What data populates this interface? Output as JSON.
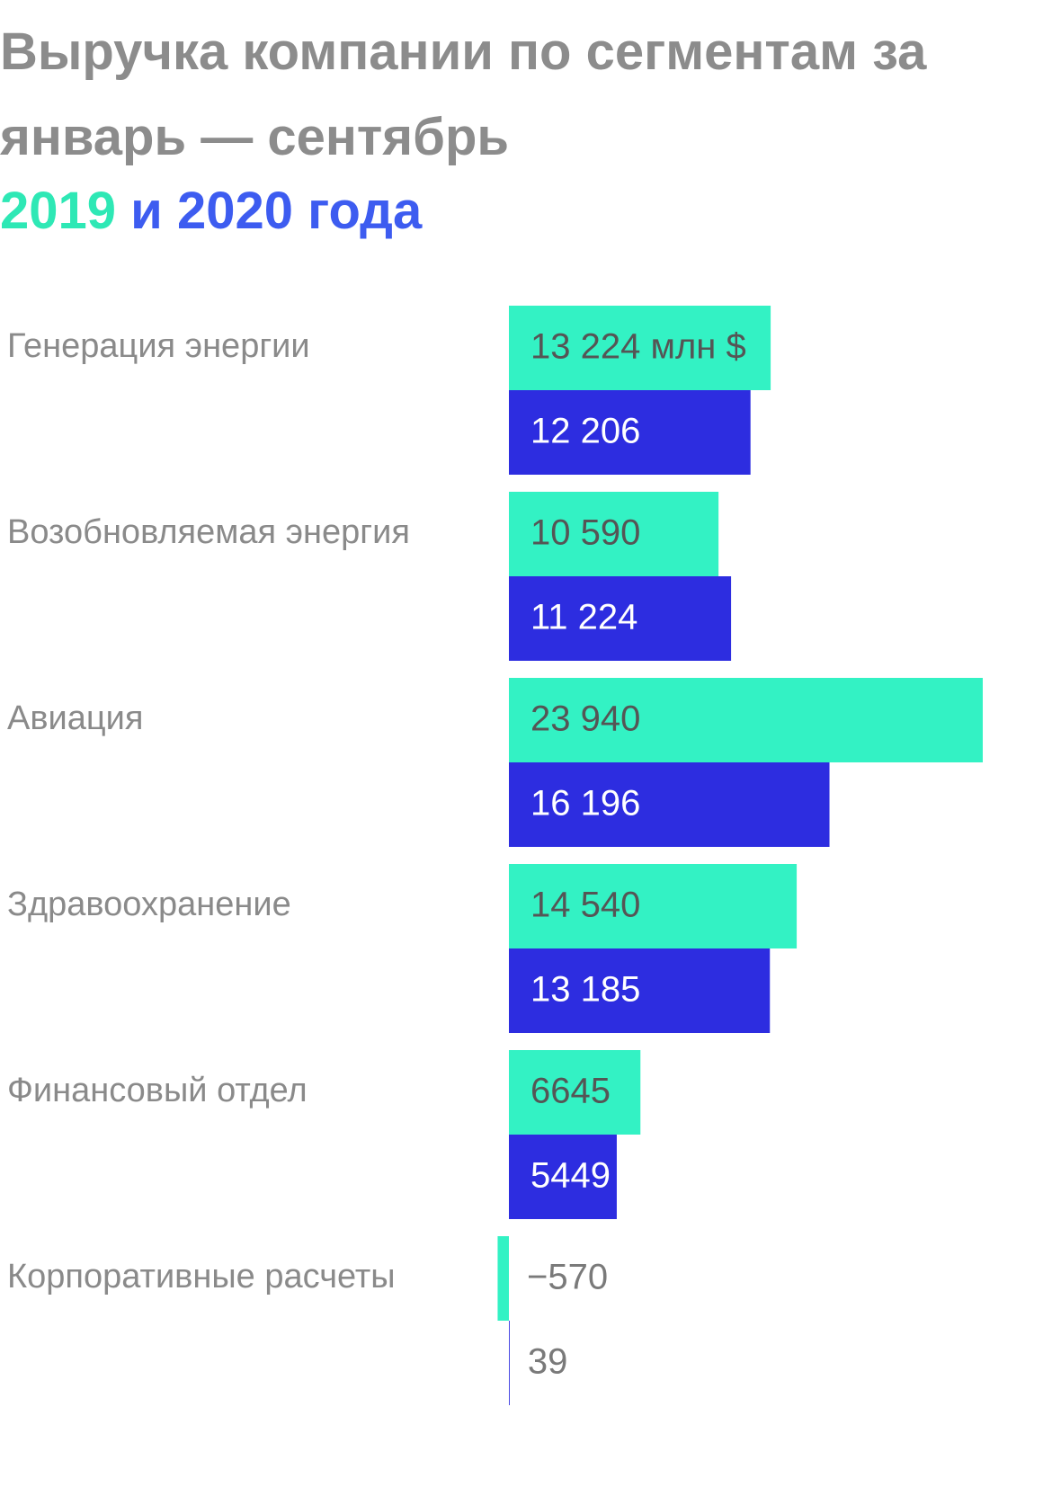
{
  "chart_data": {
    "type": "bar",
    "orientation": "horizontal",
    "title": "Выручка компании по сегментам за январь — сентябрь",
    "legend_joiner": "и",
    "categories": [
      "Генерация энергии",
      "Возобновляемая энергия",
      "Авиация",
      "Здравоохранение",
      "Финансовый отдел",
      "Корпоративные расчеты"
    ],
    "series": [
      {
        "name": "2019",
        "color": "#33f2c4",
        "values": [
          13224,
          10590,
          23940,
          14540,
          6645,
          -570
        ],
        "value_labels": [
          "13 224 млн $",
          "10 590",
          "23 940",
          "14 540",
          "6645",
          "−570"
        ]
      },
      {
        "name": "2020 года",
        "color": "#2d2de0",
        "values": [
          12206,
          11224,
          16196,
          13185,
          5449,
          39
        ],
        "value_labels": [
          "12 206",
          "11 224",
          "16 196",
          "13 185",
          "5449",
          "39"
        ]
      }
    ]
  }
}
